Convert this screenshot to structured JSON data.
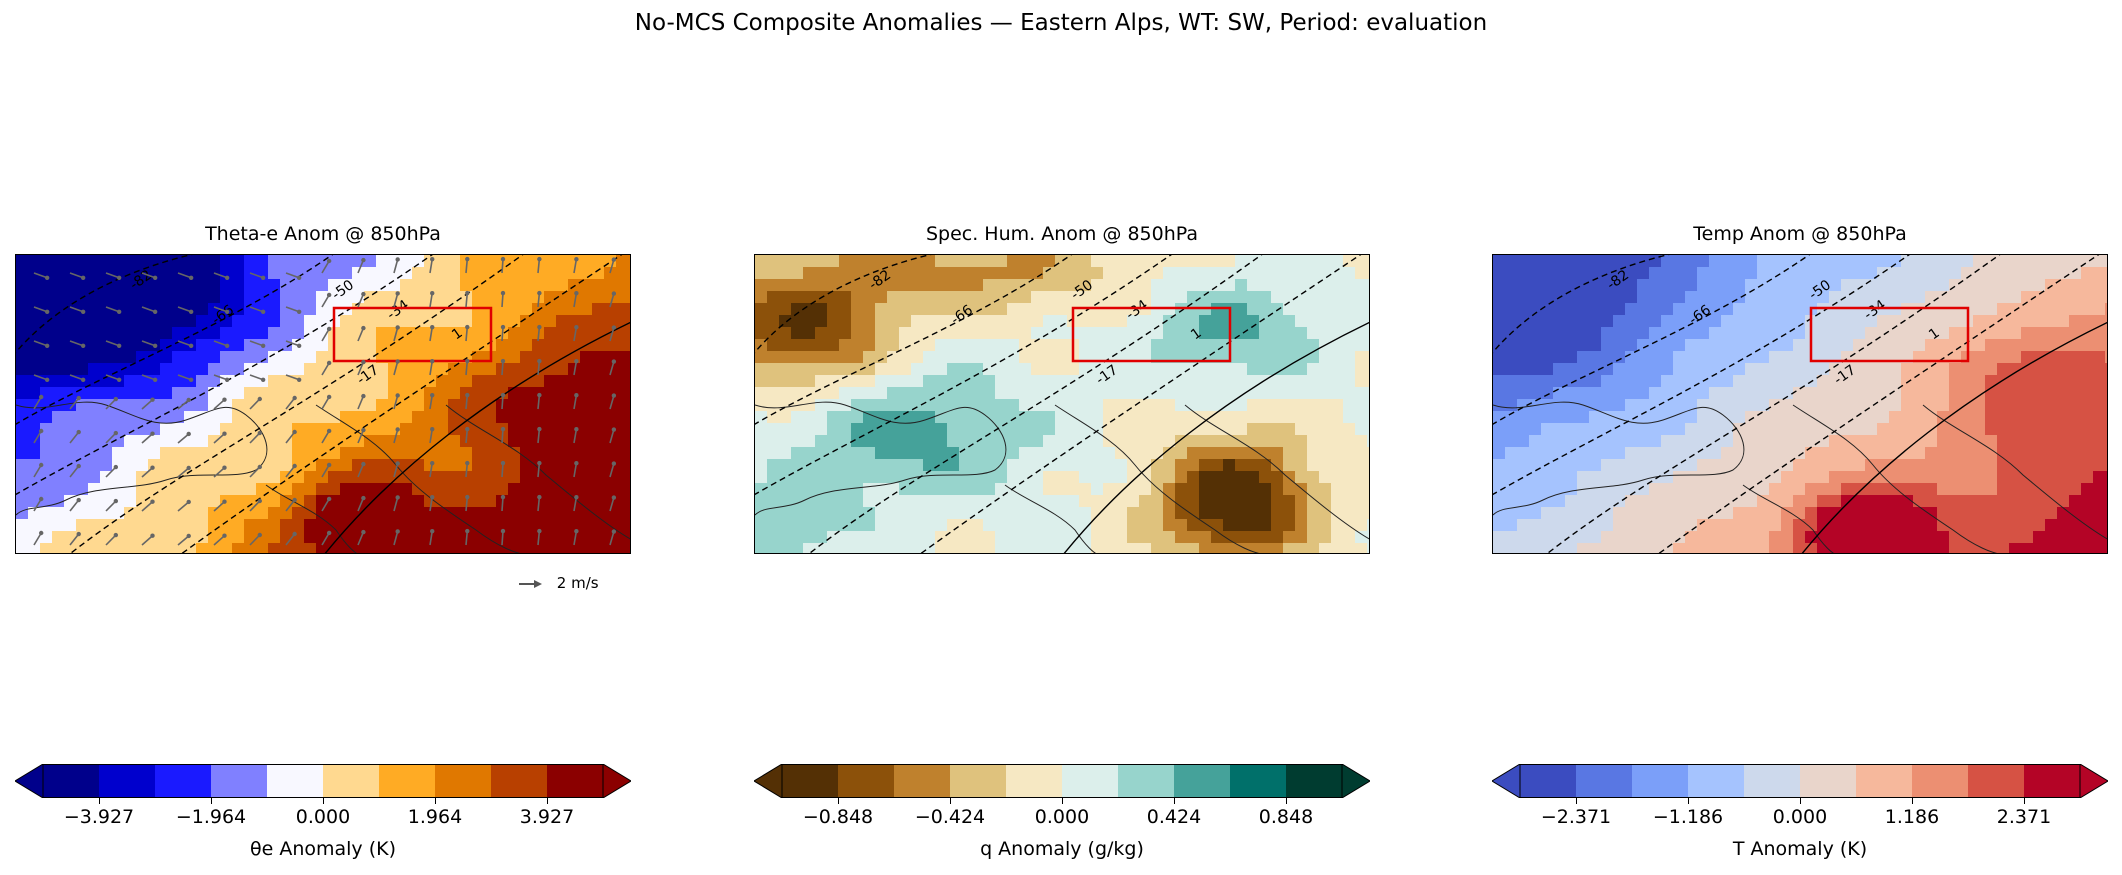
{
  "suptitle": "No-MCS Composite Anomalies — Eastern Alps, WT: SW, Period: evaluation",
  "quiver_key": "2 m/s",
  "contour_labels": [
    "-82",
    "-66",
    "-50",
    "-34",
    "-17",
    "1"
  ],
  "chart_data": [
    {
      "type": "heatmap",
      "title": "Theta-e Anom @ 850hPa",
      "colorbar_label": "θe Anomaly (K)",
      "ticks": [
        "−3.927",
        "−1.964",
        "0.000",
        "1.964",
        "3.927"
      ],
      "extend": "both",
      "colors": [
        "#00008b",
        "#0000cd",
        "#1a1aff",
        "#8080ff",
        "#f8f8ff",
        "#ffd990",
        "#ffab24",
        "#e07800",
        "#b84000",
        "#8b0000"
      ],
      "under_color": "#00008b",
      "over_color": "#8b0000",
      "overlay": "wind vectors and geopotential contours"
    },
    {
      "type": "heatmap",
      "title": "Spec. Hum. Anom @ 850hPa",
      "colorbar_label": "q Anomaly (g/kg)",
      "ticks": [
        "−0.848",
        "−0.424",
        "0.000",
        "0.424",
        "0.848"
      ],
      "extend": "both",
      "colors": [
        "#543005",
        "#8c510a",
        "#bf812d",
        "#dfc27d",
        "#f6e8c3",
        "#dcefeb",
        "#97d4cc",
        "#45a29a",
        "#00706a",
        "#003c30"
      ],
      "under_color": "#543005",
      "over_color": "#003c30",
      "overlay": "geopotential contours"
    },
    {
      "type": "heatmap",
      "title": "Temp Anom @ 850hPa",
      "colorbar_label": "T Anomaly (K)",
      "ticks": [
        "−2.371",
        "−1.186",
        "0.000",
        "1.186",
        "2.371"
      ],
      "extend": "both",
      "colors": [
        "#3b4cc0",
        "#5977e3",
        "#7b9ff9",
        "#a5c3fe",
        "#cdd9ec",
        "#e9d5cb",
        "#f6b89c",
        "#ec8f72",
        "#d65244",
        "#b40426"
      ],
      "under_color": "#3b4cc0",
      "over_color": "#b40426",
      "overlay": "geopotential contours"
    }
  ]
}
